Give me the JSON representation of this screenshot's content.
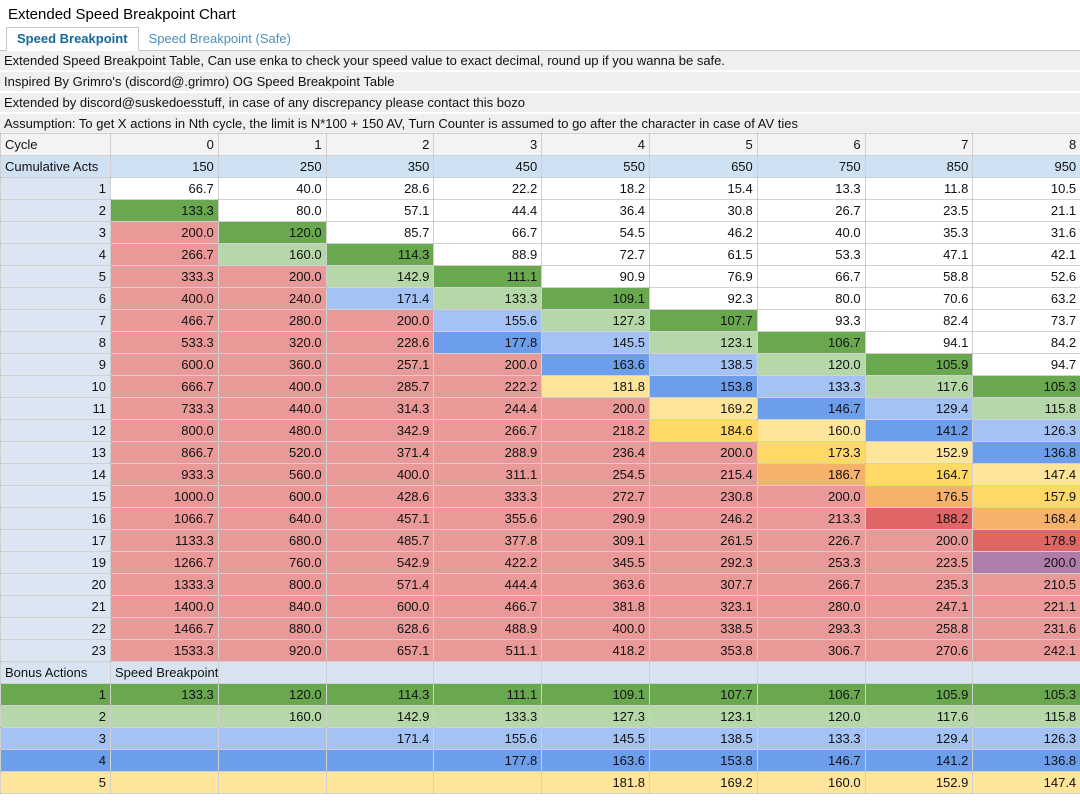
{
  "title": "Extended Speed Breakpoint Chart",
  "tabs": [
    {
      "label": "Speed Breakpoint",
      "active": true
    },
    {
      "label": "Speed Breakpoint (Safe)",
      "active": false
    }
  ],
  "notes": [
    "Extended Speed Breakpoint Table, Can use enka to check your speed value to exact decimal, round up if you wanna be safe.",
    "Inspired By Grimro's (discord@.grimro) OG Speed Breakpoint Table",
    "Extended by discord@suskedoesstuff, in case of any discrepancy please contact this bozo",
    "Assumption: To get X actions in Nth cycle, the limit is N*100 + 150 AV, Turn Counter is assumed to go after the character in case of AV ties"
  ],
  "colors": {
    "dark_green": "#6aa84f",
    "light_green": "#b6d7a8",
    "light_blue": "#a4c2f4",
    "medium_blue": "#6d9eeb",
    "light_yellow": "#ffe599",
    "gold_yellow": "#ffd966",
    "orange": "#f6b26b",
    "light_red": "#e06666",
    "pink_red": "#ea9999",
    "purple": "#b07daa",
    "header_blue": "#cfe2f3",
    "label_blue": "#dce6f3",
    "note_gray": "#efefef",
    "active_tab_text": "#17689d"
  },
  "table": {
    "cycle_label": "Cycle",
    "cycles": [
      "0",
      "1",
      "2",
      "3",
      "4",
      "5",
      "6",
      "7",
      "8"
    ],
    "cumulative_label": "Cumulative Acts",
    "cumulative_acts": [
      "150",
      "250",
      "350",
      "450",
      "550",
      "650",
      "750",
      "850",
      "950"
    ],
    "rows": [
      {
        "act": "1",
        "values": [
          "66.7",
          "40.0",
          "28.6",
          "22.2",
          "18.2",
          "15.4",
          "13.3",
          "11.8",
          "10.5"
        ],
        "colors": [
          "wh",
          "wh",
          "wh",
          "wh",
          "wh",
          "wh",
          "wh",
          "wh",
          "wh"
        ]
      },
      {
        "act": "2",
        "values": [
          "133.3",
          "80.0",
          "57.1",
          "44.4",
          "36.4",
          "30.8",
          "26.7",
          "23.5",
          "21.1"
        ],
        "colors": [
          "g1",
          "wh",
          "wh",
          "wh",
          "wh",
          "wh",
          "wh",
          "wh",
          "wh"
        ]
      },
      {
        "act": "3",
        "values": [
          "200.0",
          "120.0",
          "85.7",
          "66.7",
          "54.5",
          "46.2",
          "40.0",
          "35.3",
          "31.6"
        ],
        "colors": [
          "pk",
          "g1",
          "wh",
          "wh",
          "wh",
          "wh",
          "wh",
          "wh",
          "wh"
        ]
      },
      {
        "act": "4",
        "values": [
          "266.7",
          "160.0",
          "114.3",
          "88.9",
          "72.7",
          "61.5",
          "53.3",
          "47.1",
          "42.1"
        ],
        "colors": [
          "pk",
          "g2",
          "g1",
          "wh",
          "wh",
          "wh",
          "wh",
          "wh",
          "wh"
        ]
      },
      {
        "act": "5",
        "values": [
          "333.3",
          "200.0",
          "142.9",
          "111.1",
          "90.9",
          "76.9",
          "66.7",
          "58.8",
          "52.6"
        ],
        "colors": [
          "pk",
          "pk",
          "g2",
          "g1",
          "wh",
          "wh",
          "wh",
          "wh",
          "wh"
        ]
      },
      {
        "act": "6",
        "values": [
          "400.0",
          "240.0",
          "171.4",
          "133.3",
          "109.1",
          "92.3",
          "80.0",
          "70.6",
          "63.2"
        ],
        "colors": [
          "pk",
          "pk",
          "b1",
          "g2",
          "g1",
          "wh",
          "wh",
          "wh",
          "wh"
        ]
      },
      {
        "act": "7",
        "values": [
          "466.7",
          "280.0",
          "200.0",
          "155.6",
          "127.3",
          "107.7",
          "93.3",
          "82.4",
          "73.7"
        ],
        "colors": [
          "pk",
          "pk",
          "pk",
          "b1",
          "g2",
          "g1",
          "wh",
          "wh",
          "wh"
        ]
      },
      {
        "act": "8",
        "values": [
          "533.3",
          "320.0",
          "228.6",
          "177.8",
          "145.5",
          "123.1",
          "106.7",
          "94.1",
          "84.2"
        ],
        "colors": [
          "pk",
          "pk",
          "pk",
          "b2",
          "b1",
          "g2",
          "g1",
          "wh",
          "wh"
        ]
      },
      {
        "act": "9",
        "values": [
          "600.0",
          "360.0",
          "257.1",
          "200.0",
          "163.6",
          "138.5",
          "120.0",
          "105.9",
          "94.7"
        ],
        "colors": [
          "pk",
          "pk",
          "pk",
          "pk",
          "b2",
          "b1",
          "g2",
          "g1",
          "wh"
        ]
      },
      {
        "act": "10",
        "values": [
          "666.7",
          "400.0",
          "285.7",
          "222.2",
          "181.8",
          "153.8",
          "133.3",
          "117.6",
          "105.3"
        ],
        "colors": [
          "pk",
          "pk",
          "pk",
          "pk",
          "y1",
          "b2",
          "b1",
          "g2",
          "g1"
        ]
      },
      {
        "act": "11",
        "values": [
          "733.3",
          "440.0",
          "314.3",
          "244.4",
          "200.0",
          "169.2",
          "146.7",
          "129.4",
          "115.8"
        ],
        "colors": [
          "pk",
          "pk",
          "pk",
          "pk",
          "pk",
          "y1",
          "b2",
          "b1",
          "g2"
        ]
      },
      {
        "act": "12",
        "values": [
          "800.0",
          "480.0",
          "342.9",
          "266.7",
          "218.2",
          "184.6",
          "160.0",
          "141.2",
          "126.3"
        ],
        "colors": [
          "pk",
          "pk",
          "pk",
          "pk",
          "pk",
          "y2",
          "y1",
          "b2",
          "b1"
        ]
      },
      {
        "act": "13",
        "values": [
          "866.7",
          "520.0",
          "371.4",
          "288.9",
          "236.4",
          "200.0",
          "173.3",
          "152.9",
          "136.8"
        ],
        "colors": [
          "pk",
          "pk",
          "pk",
          "pk",
          "pk",
          "pk",
          "y2",
          "y1",
          "b2"
        ]
      },
      {
        "act": "14",
        "values": [
          "933.3",
          "560.0",
          "400.0",
          "311.1",
          "254.5",
          "215.4",
          "186.7",
          "164.7",
          "147.4"
        ],
        "colors": [
          "pk",
          "pk",
          "pk",
          "pk",
          "pk",
          "pk",
          "o1",
          "y2",
          "y1"
        ]
      },
      {
        "act": "15",
        "values": [
          "1000.0",
          "600.0",
          "428.6",
          "333.3",
          "272.7",
          "230.8",
          "200.0",
          "176.5",
          "157.9"
        ],
        "colors": [
          "pk",
          "pk",
          "pk",
          "pk",
          "pk",
          "pk",
          "pk",
          "o1",
          "y2"
        ]
      },
      {
        "act": "16",
        "values": [
          "1066.7",
          "640.0",
          "457.1",
          "355.6",
          "290.9",
          "246.2",
          "213.3",
          "188.2",
          "168.4"
        ],
        "colors": [
          "pk",
          "pk",
          "pk",
          "pk",
          "pk",
          "pk",
          "pk",
          "r1",
          "o1"
        ]
      },
      {
        "act": "17",
        "values": [
          "1133.3",
          "680.0",
          "485.7",
          "377.8",
          "309.1",
          "261.5",
          "226.7",
          "200.0",
          "178.9"
        ],
        "colors": [
          "pk",
          "pk",
          "pk",
          "pk",
          "pk",
          "pk",
          "pk",
          "pk",
          "r1"
        ]
      },
      {
        "act": "19",
        "values": [
          "1266.7",
          "760.0",
          "542.9",
          "422.2",
          "345.5",
          "292.3",
          "253.3",
          "223.5",
          "200.0"
        ],
        "colors": [
          "pk",
          "pk",
          "pk",
          "pk",
          "pk",
          "pk",
          "pk",
          "pk",
          "pu"
        ]
      },
      {
        "act": "20",
        "values": [
          "1333.3",
          "800.0",
          "571.4",
          "444.4",
          "363.6",
          "307.7",
          "266.7",
          "235.3",
          "210.5"
        ],
        "colors": [
          "pk",
          "pk",
          "pk",
          "pk",
          "pk",
          "pk",
          "pk",
          "pk",
          "pk"
        ]
      },
      {
        "act": "21",
        "values": [
          "1400.0",
          "840.0",
          "600.0",
          "466.7",
          "381.8",
          "323.1",
          "280.0",
          "247.1",
          "221.1"
        ],
        "colors": [
          "pk",
          "pk",
          "pk",
          "pk",
          "pk",
          "pk",
          "pk",
          "pk",
          "pk"
        ]
      },
      {
        "act": "22",
        "values": [
          "1466.7",
          "880.0",
          "628.6",
          "488.9",
          "400.0",
          "338.5",
          "293.3",
          "258.8",
          "231.6"
        ],
        "colors": [
          "pk",
          "pk",
          "pk",
          "pk",
          "pk",
          "pk",
          "pk",
          "pk",
          "pk"
        ]
      },
      {
        "act": "23",
        "values": [
          "1533.3",
          "920.0",
          "657.1",
          "511.1",
          "418.2",
          "353.8",
          "306.7",
          "270.6",
          "242.1"
        ],
        "colors": [
          "pk",
          "pk",
          "pk",
          "pk",
          "pk",
          "pk",
          "pk",
          "pk",
          "pk"
        ]
      }
    ],
    "bonus_header": {
      "label": "Bonus Actions",
      "title": "Speed Breakpoints"
    },
    "bonus_rows": [
      {
        "bonus": "1",
        "color": "g1",
        "values": [
          "133.3",
          "120.0",
          "114.3",
          "111.1",
          "109.1",
          "107.7",
          "106.7",
          "105.9",
          "105.3"
        ]
      },
      {
        "bonus": "2",
        "color": "g2",
        "values": [
          "",
          "160.0",
          "142.9",
          "133.3",
          "127.3",
          "123.1",
          "120.0",
          "117.6",
          "115.8"
        ]
      },
      {
        "bonus": "3",
        "color": "b1",
        "values": [
          "",
          "",
          "171.4",
          "155.6",
          "145.5",
          "138.5",
          "133.3",
          "129.4",
          "126.3"
        ]
      },
      {
        "bonus": "4",
        "color": "b2",
        "values": [
          "",
          "",
          "",
          "177.8",
          "163.6",
          "153.8",
          "146.7",
          "141.2",
          "136.8"
        ]
      },
      {
        "bonus": "5",
        "color": "y1",
        "values": [
          "",
          "",
          "",
          "",
          "181.8",
          "169.2",
          "160.0",
          "152.9",
          "147.4"
        ]
      }
    ]
  }
}
